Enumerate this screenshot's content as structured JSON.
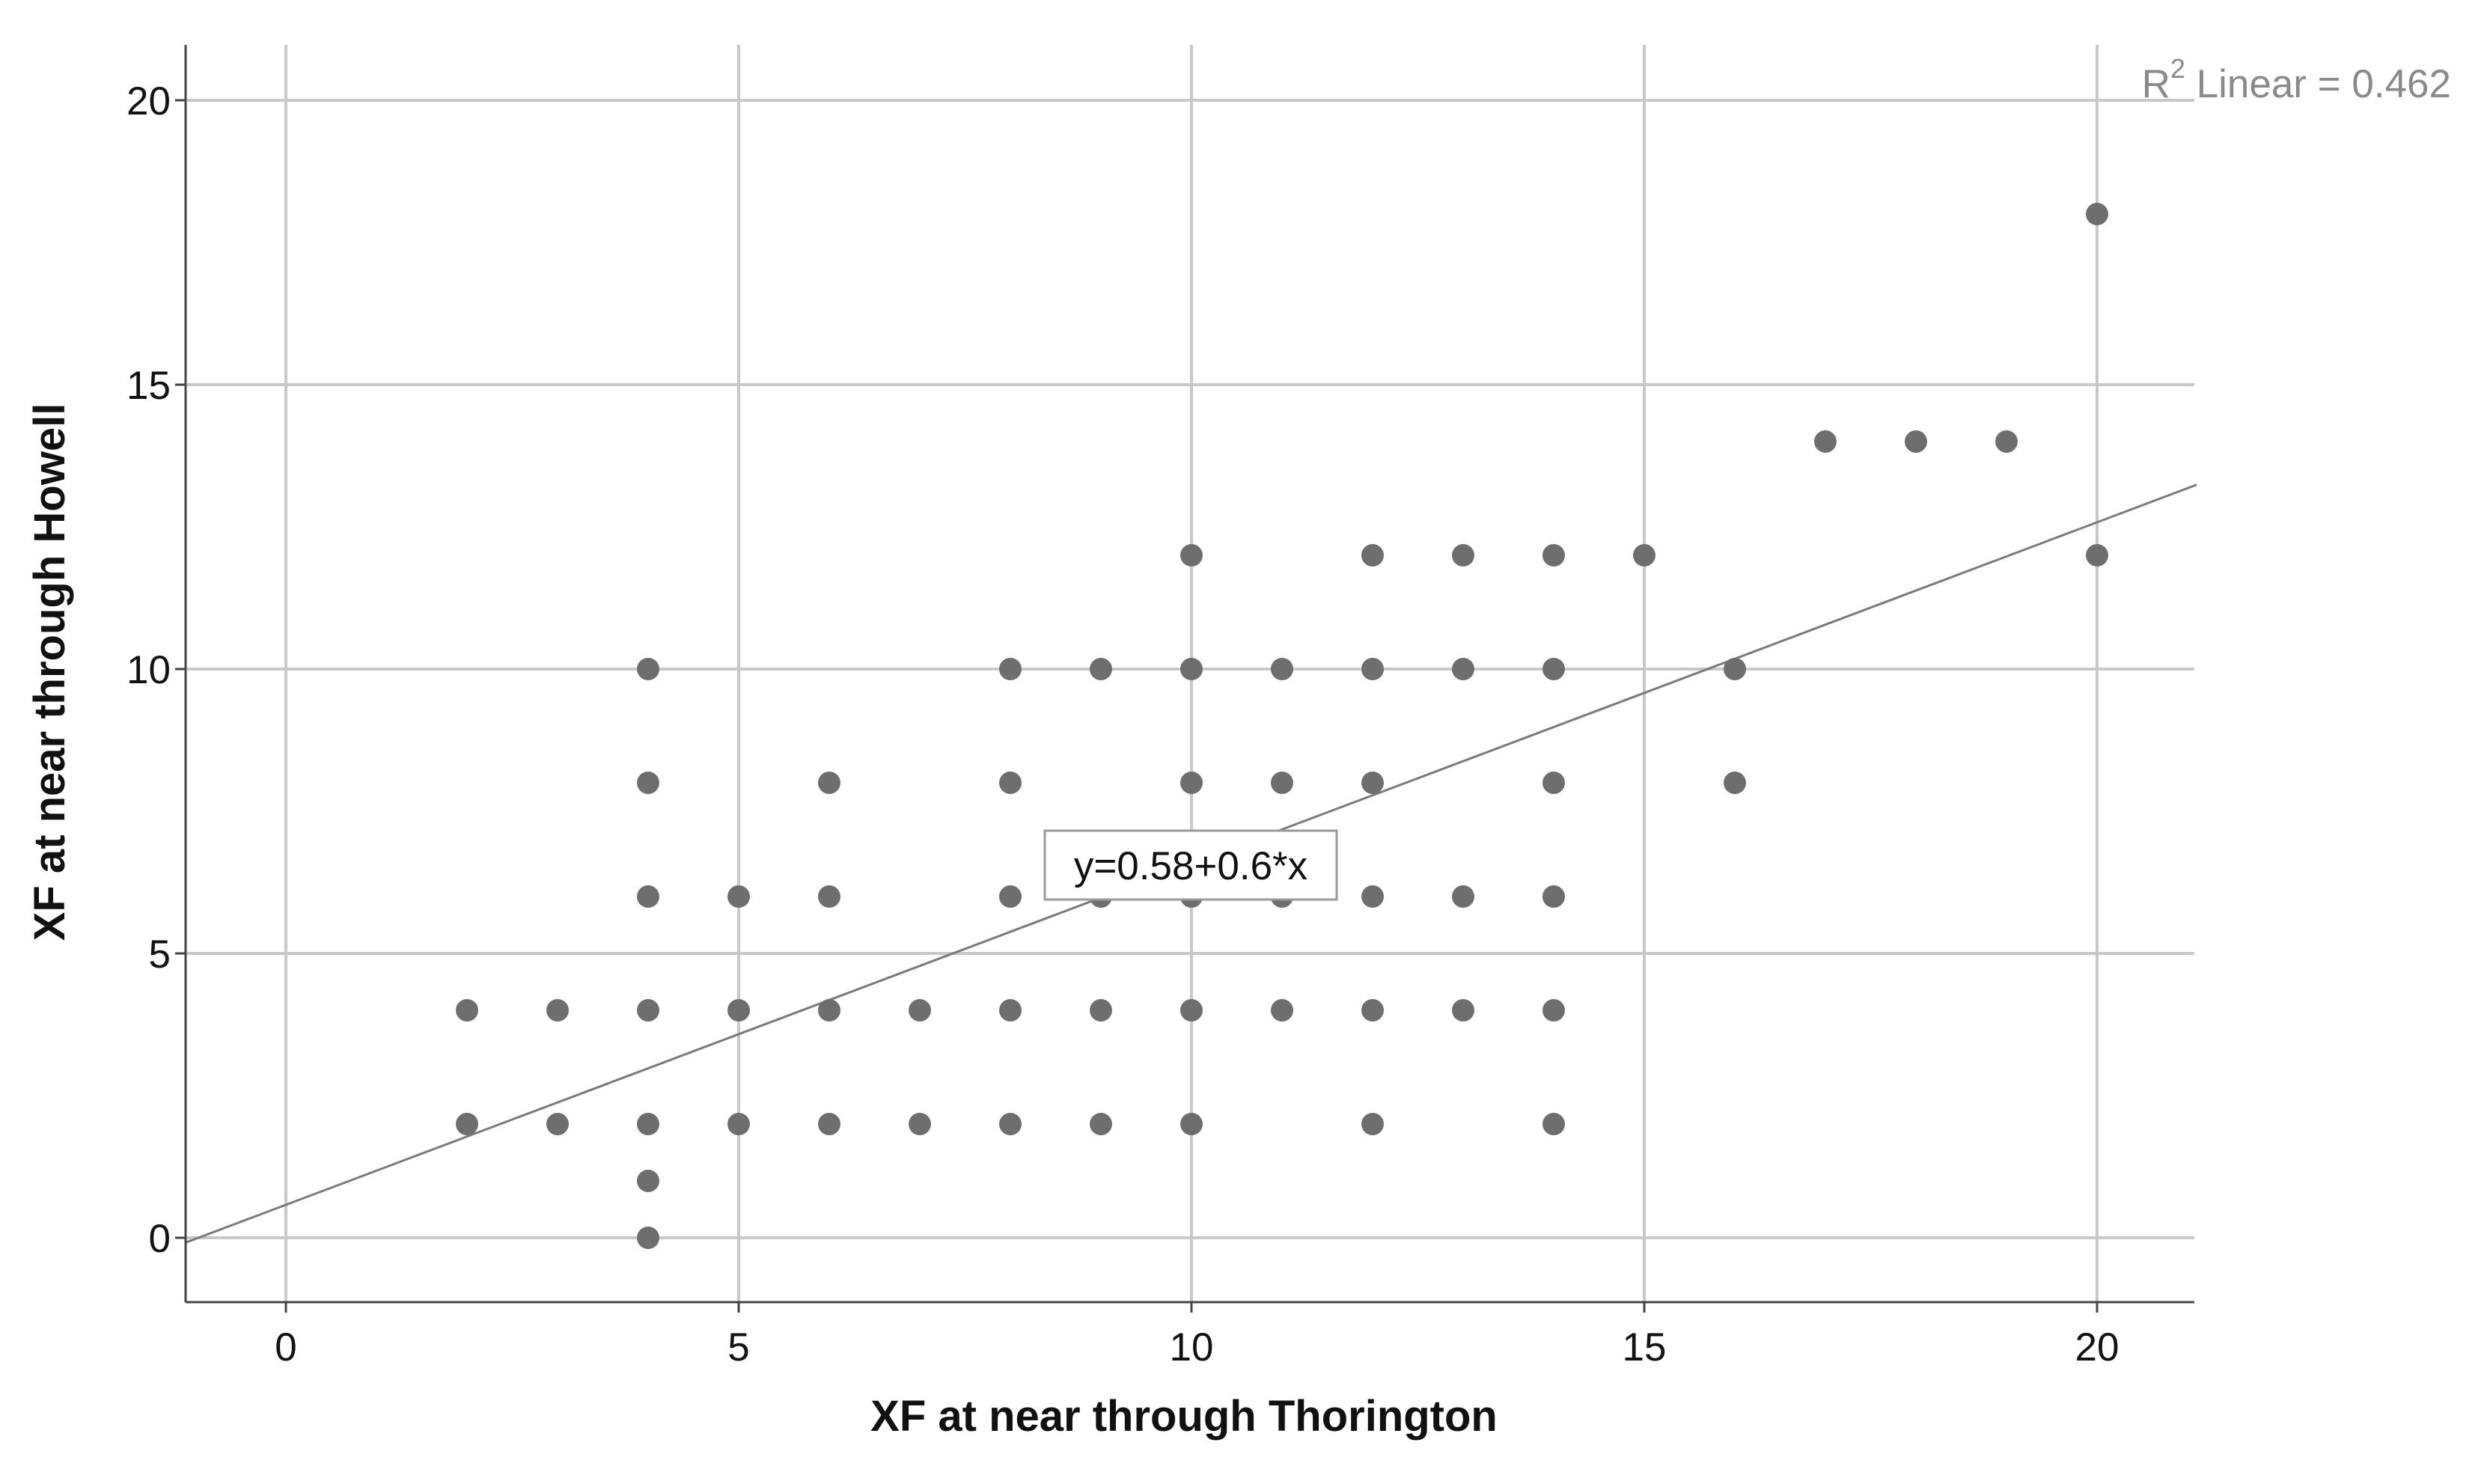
{
  "chart_data": {
    "type": "scatter",
    "xlabel": "XF at near through Thorington",
    "ylabel": "XF at near through Howell",
    "xlim": [
      -1.1,
      21.1
    ],
    "ylim": [
      -1.1,
      21.0
    ],
    "xticks": [
      0,
      5,
      10,
      15,
      20
    ],
    "yticks": [
      0,
      5,
      10,
      15,
      20
    ],
    "xtick_labels": [
      "0",
      "5",
      "10",
      "15",
      "20"
    ],
    "ytick_labels": [
      "0",
      "5",
      "10",
      "15",
      "20"
    ],
    "grid": true,
    "points": [
      [
        2,
        4
      ],
      [
        2,
        2
      ],
      [
        3,
        4
      ],
      [
        3,
        2
      ],
      [
        4,
        10
      ],
      [
        4,
        8
      ],
      [
        4,
        6
      ],
      [
        4,
        4
      ],
      [
        4,
        2
      ],
      [
        4,
        1
      ],
      [
        4,
        0
      ],
      [
        5,
        6
      ],
      [
        5,
        4
      ],
      [
        5,
        2
      ],
      [
        6,
        8
      ],
      [
        6,
        6
      ],
      [
        6,
        4
      ],
      [
        6,
        2
      ],
      [
        7,
        4
      ],
      [
        7,
        2
      ],
      [
        8,
        10
      ],
      [
        8,
        8
      ],
      [
        8,
        6
      ],
      [
        8,
        4
      ],
      [
        8,
        2
      ],
      [
        9,
        10
      ],
      [
        9,
        6
      ],
      [
        9,
        4
      ],
      [
        9,
        2
      ],
      [
        10,
        12
      ],
      [
        10,
        10
      ],
      [
        10,
        8
      ],
      [
        10,
        6
      ],
      [
        10,
        4
      ],
      [
        10,
        2
      ],
      [
        11,
        10
      ],
      [
        11,
        8
      ],
      [
        11,
        6
      ],
      [
        11,
        4
      ],
      [
        12,
        12
      ],
      [
        12,
        10
      ],
      [
        12,
        8
      ],
      [
        12,
        6
      ],
      [
        12,
        4
      ],
      [
        12,
        2
      ],
      [
        13,
        12
      ],
      [
        13,
        10
      ],
      [
        13,
        6
      ],
      [
        13,
        4
      ],
      [
        14,
        12
      ],
      [
        14,
        10
      ],
      [
        14,
        8
      ],
      [
        14,
        6
      ],
      [
        14,
        4
      ],
      [
        14,
        2
      ],
      [
        15,
        12
      ],
      [
        16,
        10
      ],
      [
        16,
        8
      ],
      [
        17,
        14
      ],
      [
        18,
        14
      ],
      [
        19,
        14
      ],
      [
        20,
        18
      ],
      [
        20,
        12
      ]
    ],
    "fit_line": {
      "intercept": 0.58,
      "slope": 0.6
    },
    "equation_label": "y=0.58+0.6*x",
    "r2_label_prefix": "R",
    "r2_label_sup": "2",
    "r2_label_suffix": " Linear = 0.462",
    "colors": {
      "points": "#6e6e6e",
      "fit_line": "#7a7a7a",
      "grid": "#c8c8c8",
      "axis": "#444444",
      "r2_text": "#8a8a8a"
    }
  }
}
